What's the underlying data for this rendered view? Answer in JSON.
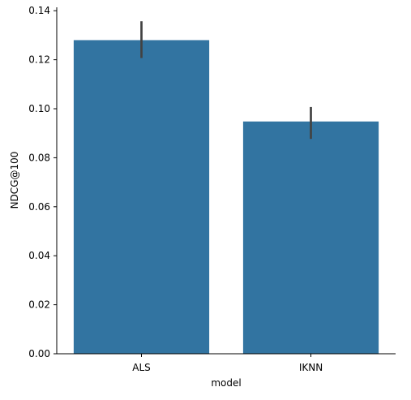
{
  "chart_data": {
    "type": "bar",
    "categories": [
      "ALS",
      "IKNN"
    ],
    "values": [
      0.128,
      0.0948
    ],
    "error_bars": [
      {
        "low": 0.1207,
        "high": 0.1357
      },
      {
        "low": 0.0877,
        "high": 0.1007
      }
    ],
    "xlabel": "model",
    "ylabel": "NDCG@100",
    "ylim": [
      0,
      0.1414
    ],
    "yticks": [
      0.0,
      0.02,
      0.04,
      0.06,
      0.08,
      0.1,
      0.12,
      0.14
    ],
    "ytick_labels": [
      "0.00",
      "0.02",
      "0.04",
      "0.06",
      "0.08",
      "0.10",
      "0.12",
      "0.14"
    ],
    "grid": false,
    "legend": "none",
    "colors": {
      "bar": "#3274a1",
      "error_bar": "#424242",
      "axis": "#000000"
    }
  }
}
